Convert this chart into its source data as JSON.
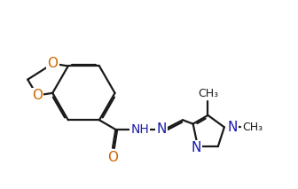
{
  "bg_color": "#ffffff",
  "line_color": "#1a1a1a",
  "n_color": "#1a1aaa",
  "o_color": "#cc6600",
  "bond_lw": 1.6,
  "dbo": 0.055,
  "font_size": 10,
  "fig_width": 3.36,
  "fig_height": 2.13,
  "dpi": 100,
  "xlim": [
    0,
    10
  ],
  "ylim": [
    0,
    6.3
  ]
}
